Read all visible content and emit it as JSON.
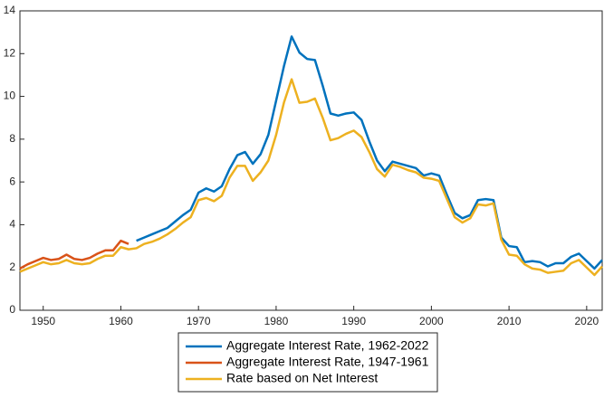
{
  "chart_data": {
    "type": "line",
    "x": [
      1947,
      1948,
      1949,
      1950,
      1951,
      1952,
      1953,
      1954,
      1955,
      1956,
      1957,
      1958,
      1959,
      1960,
      1961,
      1962,
      1963,
      1964,
      1965,
      1966,
      1967,
      1968,
      1969,
      1970,
      1971,
      1972,
      1973,
      1974,
      1975,
      1976,
      1977,
      1978,
      1979,
      1980,
      1981,
      1982,
      1983,
      1984,
      1985,
      1986,
      1987,
      1988,
      1989,
      1990,
      1991,
      1992,
      1993,
      1994,
      1995,
      1996,
      1997,
      1998,
      1999,
      2000,
      2001,
      2002,
      2003,
      2004,
      2005,
      2006,
      2007,
      2008,
      2009,
      2010,
      2011,
      2012,
      2013,
      2014,
      2015,
      2016,
      2017,
      2018,
      2019,
      2020,
      2021,
      2022
    ],
    "series": [
      {
        "name": "Aggregate Interest Rate, 1962-2022",
        "color": "#0072bd",
        "values": [
          null,
          null,
          null,
          null,
          null,
          null,
          null,
          null,
          null,
          null,
          null,
          null,
          null,
          null,
          null,
          3.25,
          3.4,
          3.55,
          3.7,
          3.85,
          4.15,
          4.45,
          4.7,
          5.5,
          5.7,
          5.55,
          5.8,
          6.6,
          7.25,
          7.4,
          6.85,
          7.3,
          8.2,
          9.8,
          11.4,
          12.8,
          12.05,
          11.75,
          11.7,
          10.5,
          9.2,
          9.1,
          9.2,
          9.25,
          8.9,
          7.9,
          7.0,
          6.5,
          6.95,
          6.85,
          6.75,
          6.65,
          6.3,
          6.4,
          6.3,
          5.4,
          4.55,
          4.3,
          4.45,
          5.15,
          5.2,
          5.15,
          3.4,
          3.0,
          2.95,
          2.25,
          2.3,
          2.25,
          2.05,
          2.2,
          2.2,
          2.5,
          2.65,
          2.3,
          1.95,
          2.35
        ]
      },
      {
        "name": "Aggregate Interest Rate, 1947-1961",
        "color": "#d95319",
        "values": [
          1.95,
          2.15,
          2.3,
          2.45,
          2.35,
          2.4,
          2.6,
          2.4,
          2.35,
          2.45,
          2.65,
          2.8,
          2.8,
          3.25,
          3.1,
          null,
          null,
          null,
          null,
          null,
          null,
          null,
          null,
          null,
          null,
          null,
          null,
          null,
          null,
          null,
          null,
          null,
          null,
          null,
          null,
          null,
          null,
          null,
          null,
          null,
          null,
          null,
          null,
          null,
          null,
          null,
          null,
          null,
          null,
          null,
          null,
          null,
          null,
          null,
          null,
          null,
          null,
          null,
          null,
          null,
          null,
          null,
          null,
          null,
          null,
          null,
          null,
          null,
          null,
          null,
          null,
          null,
          null,
          null,
          null,
          null
        ]
      },
      {
        "name": "Rate based on Net Interest",
        "color": "#edb120",
        "values": [
          1.8,
          1.95,
          2.1,
          2.25,
          2.15,
          2.2,
          2.35,
          2.2,
          2.15,
          2.2,
          2.4,
          2.55,
          2.55,
          2.95,
          2.85,
          2.9,
          3.1,
          3.2,
          3.35,
          3.55,
          3.8,
          4.1,
          4.35,
          5.15,
          5.25,
          5.1,
          5.35,
          6.2,
          6.75,
          6.75,
          6.05,
          6.45,
          7.0,
          8.2,
          9.7,
          10.8,
          9.7,
          9.75,
          9.9,
          9.0,
          7.95,
          8.05,
          8.25,
          8.4,
          8.1,
          7.4,
          6.6,
          6.25,
          6.8,
          6.7,
          6.55,
          6.45,
          6.2,
          6.15,
          6.05,
          5.2,
          4.35,
          4.1,
          4.3,
          4.95,
          4.9,
          5.0,
          3.3,
          2.6,
          2.55,
          2.15,
          1.95,
          1.9,
          1.75,
          1.8,
          1.85,
          2.2,
          2.35,
          2.0,
          1.65,
          2.05
        ]
      }
    ],
    "xlim": [
      1947,
      2022
    ],
    "xticks": [
      1950,
      1960,
      1970,
      1980,
      1990,
      2000,
      2010,
      2020
    ],
    "ylim": [
      0,
      14
    ],
    "yticks": [
      0,
      2,
      4,
      6,
      8,
      10,
      12,
      14
    ],
    "grid": false,
    "legend": "bottom"
  }
}
